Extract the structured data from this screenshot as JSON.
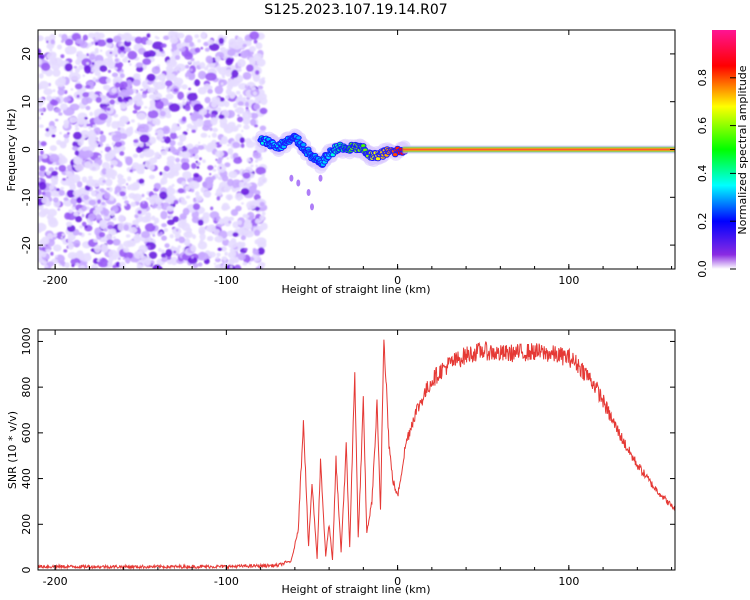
{
  "title": "S125.2023.107.19.14.R07",
  "colors": {
    "snr_line": "#e53935",
    "spectral_noise": "#8a3cff",
    "background": "#ffffff"
  },
  "chart_data": [
    {
      "type": "heatmap",
      "name": "spectrogram",
      "xlabel": "Height of straight line (km)",
      "ylabel": "Frequency (Hz)",
      "xlim": [
        -210,
        162
      ],
      "ylim": [
        -25,
        25
      ],
      "xticks": [
        -200,
        -100,
        0,
        100
      ],
      "yticks": [
        -20,
        -10,
        0,
        10,
        20
      ],
      "noise_region": {
        "x_range": [
          -210,
          -78
        ],
        "freq_range": [
          -25,
          24
        ],
        "typical_amplitude": 0.25
      },
      "signal_trace": [
        {
          "x": -80,
          "freq": 2.0,
          "amp": 0.4
        },
        {
          "x": -75,
          "freq": 1.5,
          "amp": 0.3
        },
        {
          "x": -70,
          "freq": 0.5,
          "amp": 0.35
        },
        {
          "x": -65,
          "freq": 1.5,
          "amp": 0.3
        },
        {
          "x": -60,
          "freq": 2.5,
          "amp": 0.3
        },
        {
          "x": -55,
          "freq": 0.5,
          "amp": 0.3
        },
        {
          "x": -50,
          "freq": -1.5,
          "amp": 0.3
        },
        {
          "x": -45,
          "freq": -3.0,
          "amp": 0.3
        },
        {
          "x": -40,
          "freq": -1.0,
          "amp": 0.35
        },
        {
          "x": -35,
          "freq": 0.5,
          "amp": 0.4
        },
        {
          "x": -30,
          "freq": 0.0,
          "amp": 0.45
        },
        {
          "x": -25,
          "freq": 0.5,
          "amp": 0.6
        },
        {
          "x": -20,
          "freq": 0.0,
          "amp": 0.55
        },
        {
          "x": -15,
          "freq": -1.5,
          "amp": 0.65
        },
        {
          "x": -10,
          "freq": -1.0,
          "amp": 0.7
        },
        {
          "x": -5,
          "freq": -0.5,
          "amp": 0.75
        },
        {
          "x": 5,
          "freq": 0.0,
          "amp": 0.9
        },
        {
          "x": 160,
          "freq": 0.0,
          "amp": 1.0
        }
      ],
      "colorbar": {
        "label": "Normalized spectral amplitude",
        "range": [
          0.0,
          1.0
        ],
        "ticks": [
          0.0,
          0.2,
          0.4,
          0.6,
          0.8
        ],
        "tick_labels": [
          "0.0",
          "0.2",
          "0.4",
          "0.6",
          "0.8"
        ],
        "colormap": [
          "#ffffff",
          "#8a2be2",
          "#0000ff",
          "#00ffff",
          "#00ff00",
          "#ffff00",
          "#ff0000",
          "#ff1493"
        ]
      }
    },
    {
      "type": "line",
      "name": "snr",
      "xlabel": "Height of straight line (km)",
      "ylabel": "SNR (10 * v/v)",
      "xlim": [
        -210,
        162
      ],
      "ylim": [
        0,
        1050
      ],
      "xticks": [
        -200,
        -100,
        0,
        100
      ],
      "yticks": [
        0,
        200,
        400,
        600,
        800,
        1000
      ],
      "series": [
        {
          "name": "SNR",
          "x": [
            -210,
            -150,
            -100,
            -70,
            -62,
            -58,
            -55,
            -52,
            -50,
            -47,
            -45,
            -42,
            -40,
            -38,
            -36,
            -33,
            -30,
            -28,
            -25,
            -23,
            -20,
            -18,
            -15,
            -12,
            -10,
            -8,
            -5,
            -3,
            0,
            5,
            10,
            15,
            20,
            25,
            30,
            35,
            40,
            45,
            50,
            60,
            70,
            80,
            90,
            100,
            105,
            110,
            115,
            120,
            125,
            130,
            135,
            140,
            145,
            150,
            155,
            160,
            162
          ],
          "values": [
            15,
            14,
            15,
            20,
            40,
            180,
            660,
            100,
            380,
            50,
            480,
            60,
            200,
            40,
            480,
            80,
            540,
            100,
            860,
            140,
            730,
            160,
            300,
            720,
            260,
            1040,
            550,
            400,
            320,
            560,
            680,
            760,
            830,
            870,
            900,
            920,
            940,
            950,
            960,
            945,
            950,
            955,
            945,
            930,
            900,
            860,
            810,
            740,
            660,
            590,
            520,
            460,
            410,
            360,
            320,
            280,
            270
          ]
        }
      ]
    }
  ]
}
